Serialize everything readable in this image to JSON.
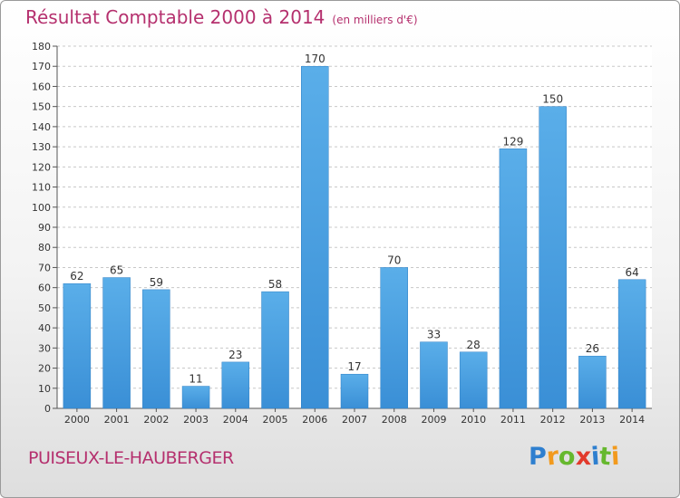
{
  "chart_data": {
    "type": "bar",
    "title": "Résultat Comptable 2000 à 2014",
    "subtitle": "(en milliers d'€)",
    "categories": [
      "2000",
      "2001",
      "2002",
      "2003",
      "2004",
      "2005",
      "2006",
      "2007",
      "2008",
      "2009",
      "2010",
      "2011",
      "2012",
      "2013",
      "2014"
    ],
    "values": [
      62,
      65,
      59,
      11,
      23,
      58,
      170,
      17,
      70,
      33,
      28,
      129,
      150,
      26,
      64
    ],
    "ylim": [
      0,
      180
    ],
    "ytick_step": 10,
    "xlabel": "",
    "ylabel": "",
    "grid": true,
    "bar_color": "#3a8fd6"
  },
  "commune": "PUISEUX-LE-HAUBERGER",
  "logo": {
    "letters": [
      "P",
      "r",
      "o",
      "x",
      "i",
      "t",
      "i"
    ],
    "colors": [
      "#2e7fcf",
      "#f29a1d",
      "#66b82e",
      "#e23a2c",
      "#2e7fcf",
      "#66b82e",
      "#f29a1d"
    ]
  }
}
